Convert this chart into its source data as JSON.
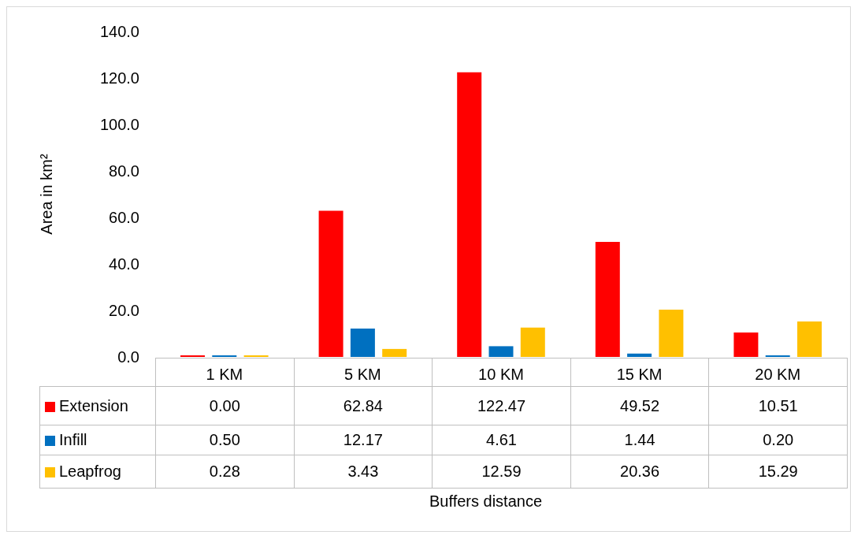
{
  "chart_data": {
    "type": "bar",
    "annotations": [
      "Buffers distance"
    ],
    "ylabel": "Area in km²",
    "categories": [
      "1 KM",
      "5 KM",
      "10 KM",
      "15 KM",
      "20 KM"
    ],
    "series": [
      {
        "name": "Extension",
        "color": "#ff0000",
        "values": [
          0.0,
          62.84,
          122.47,
          49.52,
          10.51
        ],
        "value_labels": [
          "0.00",
          "62.84",
          "122.47",
          "49.52",
          "10.51"
        ]
      },
      {
        "name": "Infill",
        "color": "#0070c0",
        "values": [
          0.5,
          12.17,
          4.61,
          1.44,
          0.2
        ],
        "value_labels": [
          "0.50",
          "12.17",
          "4.61",
          "1.44",
          "0.20"
        ]
      },
      {
        "name": "Leapfrog",
        "color": "#ffc000",
        "values": [
          0.28,
          3.43,
          12.59,
          20.36,
          15.29
        ],
        "value_labels": [
          "0.28",
          "3.43",
          "12.59",
          "20.36",
          "15.29"
        ]
      }
    ],
    "ylim": [
      0,
      140
    ],
    "yticks": [
      {
        "value": 0,
        "label": "0.0"
      },
      {
        "value": 20,
        "label": "20.0"
      },
      {
        "value": 40,
        "label": "40.0"
      },
      {
        "value": 60,
        "label": "60.0"
      },
      {
        "value": 80,
        "label": "80.0"
      },
      {
        "value": 100,
        "label": "100.0"
      },
      {
        "value": 120,
        "label": "120.0"
      },
      {
        "value": 140,
        "label": "140.0"
      }
    ],
    "grid": false,
    "legend": "bottom"
  }
}
